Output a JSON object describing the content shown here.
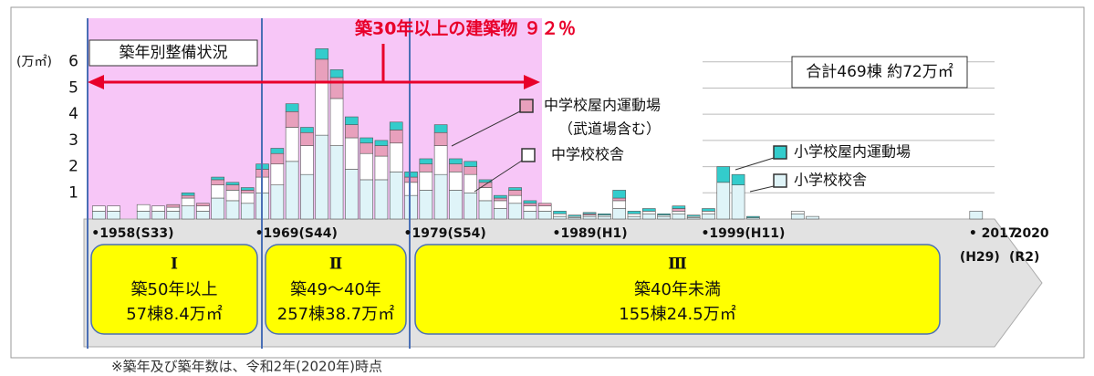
{
  "chart_data": {
    "type": "bar",
    "stacked": true,
    "title": "築30年以上の建築物 ９２％",
    "subtitle": "築年別整備状況",
    "total_note": "合計469棟 約72万㎡",
    "y_label": "(万㎡)",
    "footnote": "※築年及び築年数は、令和2年(2020年)時点",
    "legend_note": "（武道場含む）",
    "x": [
      1958,
      1959,
      1961,
      1962,
      1963,
      1964,
      1965,
      1966,
      1967,
      1968,
      1969,
      1970,
      1971,
      1972,
      1973,
      1974,
      1975,
      1976,
      1977,
      1978,
      1979,
      1980,
      1981,
      1982,
      1983,
      1984,
      1985,
      1986,
      1987,
      1988,
      1989,
      1990,
      1991,
      1992,
      1993,
      1994,
      1995,
      1996,
      1997,
      1998,
      1999,
      2000,
      2001,
      2002,
      2005,
      2006,
      2017
    ],
    "series": [
      {
        "name": "小学校校舎",
        "color": "#dff4f8",
        "values": [
          0.3,
          0.3,
          0.3,
          0.3,
          0.3,
          0.5,
          0.3,
          0.8,
          0.7,
          0.6,
          1.0,
          1.3,
          2.2,
          1.7,
          3.2,
          2.8,
          1.9,
          1.5,
          1.5,
          1.8,
          0.9,
          1.1,
          1.7,
          1.1,
          1.0,
          0.7,
          0.4,
          0.6,
          0.3,
          0.3,
          0.1,
          0.05,
          0.1,
          0.1,
          0.4,
          0.1,
          0.2,
          0.1,
          0.2,
          0.05,
          0.2,
          1.4,
          1.3,
          0.05,
          0.2,
          0.1,
          0.3
        ]
      },
      {
        "name": "中学校校舎",
        "color": "#ffffff",
        "values": [
          0.2,
          0.2,
          0.25,
          0.2,
          0.15,
          0.3,
          0.2,
          0.5,
          0.4,
          0.4,
          0.6,
          0.8,
          1.3,
          1.1,
          2.0,
          1.8,
          1.2,
          1.0,
          0.9,
          1.1,
          0.5,
          0.7,
          1.1,
          0.7,
          0.7,
          0.5,
          0.3,
          0.3,
          0.2,
          0.2,
          0.1,
          0.05,
          0.05,
          0.05,
          0.3,
          0.1,
          0.1,
          0.05,
          0.1,
          0.05,
          0.1,
          0,
          0,
          0,
          0.1,
          0,
          0
        ]
      },
      {
        "name": "中学校屋内運動場",
        "color": "#e8a0bc",
        "values": [
          0,
          0,
          0,
          0,
          0.1,
          0.1,
          0.1,
          0.2,
          0.2,
          0.1,
          0.3,
          0.4,
          0.6,
          0.5,
          0.9,
          0.8,
          0.5,
          0.4,
          0.4,
          0.5,
          0.2,
          0.3,
          0.5,
          0.3,
          0.3,
          0.2,
          0.1,
          0.2,
          0.1,
          0.1,
          0,
          0,
          0.05,
          0,
          0.1,
          0,
          0,
          0,
          0.1,
          0,
          0,
          0,
          0,
          0,
          0,
          0,
          0
        ]
      },
      {
        "name": "小学校屋内運動場",
        "color": "#33cccc",
        "values": [
          0,
          0,
          0,
          0,
          0,
          0.1,
          0,
          0.1,
          0.1,
          0.1,
          0.2,
          0.2,
          0.3,
          0.2,
          0.4,
          0.3,
          0.3,
          0.2,
          0.2,
          0.3,
          0.2,
          0.2,
          0.3,
          0.2,
          0.2,
          0.1,
          0.1,
          0.1,
          0.1,
          0,
          0.1,
          0.05,
          0.05,
          0.05,
          0.3,
          0.1,
          0.1,
          0.05,
          0.1,
          0.05,
          0.1,
          0.6,
          0.4,
          0.05,
          0,
          0,
          0
        ]
      }
    ],
    "xlim": [
      1957,
      2021
    ],
    "xticks": [
      {
        "value": 1958,
        "label": "•1958(S33)"
      },
      {
        "value": 1969,
        "label": "•1969(S44)"
      },
      {
        "value": 1979,
        "label": "•1979(S54)"
      },
      {
        "value": 1989,
        "label": "•1989(H1)"
      },
      {
        "value": 1999,
        "label": "•1999(H11)"
      },
      {
        "value": 2017,
        "label": "• 2017"
      },
      {
        "value": 2020,
        "label": "2020"
      }
    ],
    "x_notes": [
      {
        "value": 2017,
        "label": "(H29)"
      },
      {
        "value": 2020,
        "label": "(R2)"
      }
    ],
    "ylim": [
      0,
      6.2
    ],
    "yticks": [
      1,
      2,
      3,
      4,
      5,
      6
    ],
    "grid": true,
    "periods": [
      {
        "numeral": "Ⅰ",
        "age": "築50年以上",
        "summary": "57棟8.4万㎡"
      },
      {
        "numeral": "Ⅱ",
        "age": "築49～40年",
        "summary": "257棟38.7万㎡"
      },
      {
        "numeral": "Ⅲ",
        "age": "築40年未満",
        "summary": "155棟24.5万㎡"
      }
    ]
  }
}
